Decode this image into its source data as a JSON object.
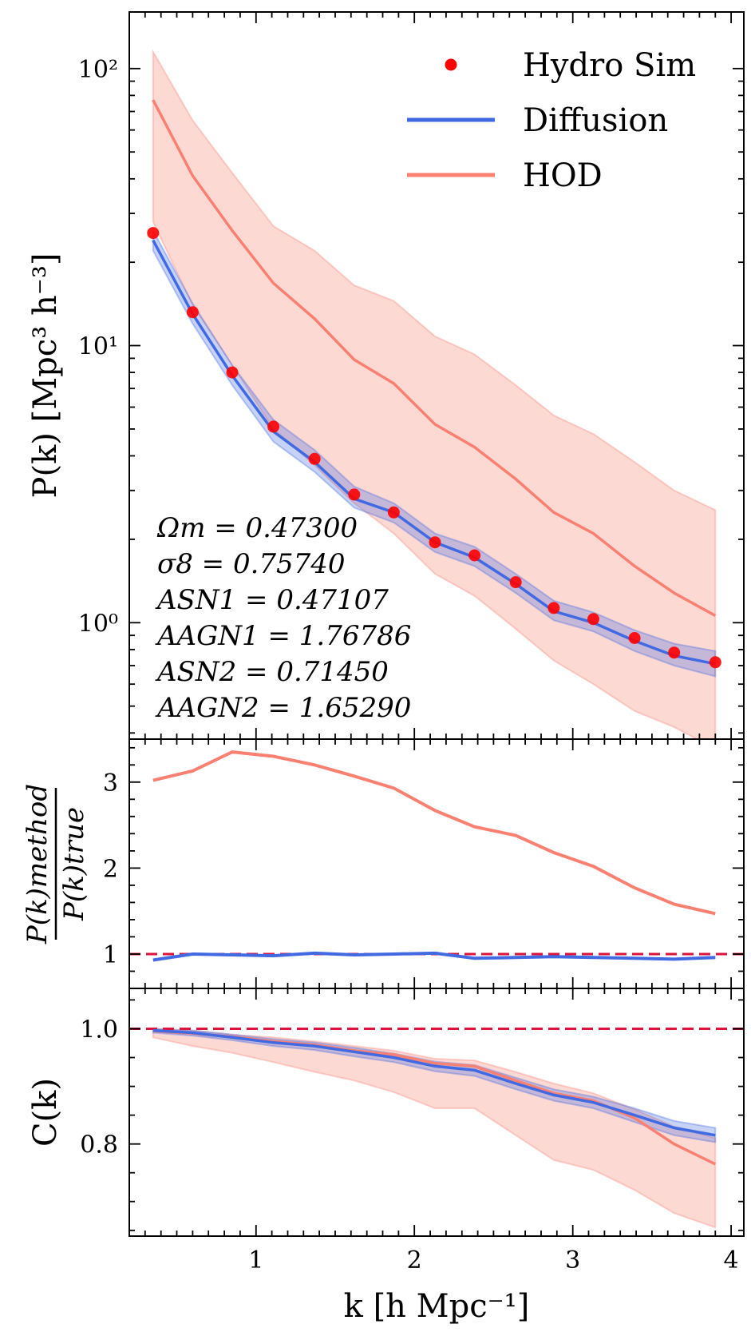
{
  "figure": {
    "xlabel": "k [h Mpc⁻¹]",
    "legend": [
      {
        "label": "Hydro Sim",
        "color": "#ff0000",
        "kind": "marker"
      },
      {
        "label": "Diffusion",
        "color": "#4169e1",
        "kind": "line"
      },
      {
        "label": "HOD",
        "color": "#fa8072",
        "kind": "line"
      }
    ],
    "annotations": [
      "Ωm = 0.47300",
      "σ8 = 0.75740",
      "ASN1 = 0.47107",
      "AAGN1 = 1.76786",
      "ASN2 = 0.71450",
      "AAGN2 = 1.65290"
    ]
  },
  "chart_data": [
    {
      "type": "line",
      "title": "",
      "ylabel": "P(k) [Mpc³ h⁻³]",
      "yscale": "log",
      "xlim": [
        0.2,
        4.08
      ],
      "ylim": [
        0.38,
        160
      ],
      "xticks": [
        1,
        2,
        3,
        4
      ],
      "yticks": [
        {
          "value": 1,
          "label": "10⁰"
        },
        {
          "value": 10,
          "label": "10¹"
        },
        {
          "value": 100,
          "label": "10²"
        }
      ],
      "x": [
        0.35,
        0.6,
        0.85,
        1.11,
        1.37,
        1.62,
        1.87,
        2.13,
        2.38,
        2.64,
        2.88,
        3.13,
        3.39,
        3.64,
        3.9
      ],
      "series": [
        {
          "name": "Hydro Sim",
          "style": "marker",
          "color": "#ff0000",
          "values": [
            25.5,
            13.2,
            8.0,
            5.1,
            3.9,
            2.9,
            2.5,
            1.95,
            1.75,
            1.4,
            1.13,
            1.03,
            0.88,
            0.78,
            0.72
          ]
        },
        {
          "name": "Diffusion",
          "style": "line",
          "color": "#4169e1",
          "values": [
            24.0,
            13.0,
            7.8,
            4.9,
            3.8,
            2.8,
            2.5,
            1.95,
            1.72,
            1.38,
            1.1,
            1.0,
            0.86,
            0.76,
            0.71
          ],
          "band_low": [
            22.0,
            12.0,
            7.2,
            4.5,
            3.5,
            2.6,
            2.3,
            1.8,
            1.6,
            1.28,
            1.02,
            0.93,
            0.79,
            0.7,
            0.64
          ],
          "band_high": [
            26.0,
            14.2,
            8.5,
            5.4,
            4.2,
            3.1,
            2.7,
            2.1,
            1.88,
            1.5,
            1.2,
            1.09,
            0.94,
            0.84,
            0.79
          ]
        },
        {
          "name": "HOD",
          "style": "line",
          "color": "#fa8072",
          "values": [
            77.0,
            41.0,
            26.0,
            16.8,
            12.5,
            8.9,
            7.3,
            5.2,
            4.3,
            3.3,
            2.5,
            2.1,
            1.6,
            1.28,
            1.06
          ],
          "band_low": [
            28.0,
            14.0,
            8.5,
            5.0,
            3.7,
            2.7,
            2.1,
            1.5,
            1.25,
            0.95,
            0.73,
            0.6,
            0.48,
            0.42,
            0.35
          ],
          "band_high": [
            115.0,
            65.0,
            42.0,
            27.0,
            22.0,
            16.5,
            14.5,
            10.8,
            9.3,
            7.2,
            5.6,
            4.8,
            3.8,
            3.0,
            2.55
          ]
        }
      ]
    },
    {
      "type": "line",
      "title": "",
      "ylabel": "P(k)_method / P(k)_true",
      "ylabel_num": "P(k)method",
      "ylabel_den": "P(k)true",
      "xlim": [
        0.2,
        4.08
      ],
      "ylim": [
        0.6,
        3.5
      ],
      "yticks": [
        1,
        2,
        3
      ],
      "reference_line": {
        "value": 1.0,
        "color": "#dc143c",
        "style": "dashed"
      },
      "x": [
        0.35,
        0.6,
        0.85,
        1.11,
        1.37,
        1.62,
        1.87,
        2.13,
        2.38,
        2.64,
        2.88,
        3.13,
        3.39,
        3.64,
        3.9
      ],
      "series": [
        {
          "name": "HOD",
          "color": "#fa8072",
          "values": [
            3.02,
            3.13,
            3.35,
            3.3,
            3.2,
            3.07,
            2.93,
            2.67,
            2.48,
            2.38,
            2.18,
            2.02,
            1.77,
            1.58,
            1.47
          ]
        },
        {
          "name": "Diffusion",
          "color": "#4169e1",
          "values": [
            0.93,
            1.0,
            0.99,
            0.98,
            1.01,
            0.99,
            1.0,
            1.01,
            0.95,
            0.96,
            0.97,
            0.96,
            0.95,
            0.94,
            0.96
          ]
        }
      ]
    },
    {
      "type": "area",
      "title": "",
      "ylabel": "C(k)",
      "xlim": [
        0.2,
        4.08
      ],
      "ylim": [
        0.64,
        1.07
      ],
      "yticks": [
        {
          "value": 0.8,
          "label": "0.8"
        },
        {
          "value": 1.0,
          "label": "1.0"
        }
      ],
      "reference_line": {
        "value": 1.0,
        "color": "#dc143c",
        "style": "dashed"
      },
      "x": [
        0.35,
        0.6,
        0.85,
        1.11,
        1.37,
        1.62,
        1.87,
        2.13,
        2.38,
        2.64,
        2.88,
        3.13,
        3.39,
        3.64,
        3.9
      ],
      "series": [
        {
          "name": "HOD",
          "color": "#fa8072",
          "values": [
            0.996,
            0.992,
            0.986,
            0.978,
            0.972,
            0.962,
            0.955,
            0.94,
            0.935,
            0.91,
            0.888,
            0.875,
            0.845,
            0.8,
            0.765
          ],
          "band_low": [
            0.985,
            0.97,
            0.958,
            0.942,
            0.925,
            0.91,
            0.89,
            0.862,
            0.862,
            0.815,
            0.772,
            0.755,
            0.72,
            0.68,
            0.655
          ],
          "band_high": [
            1.0,
            0.997,
            0.99,
            0.985,
            0.978,
            0.97,
            0.962,
            0.948,
            0.945,
            0.925,
            0.905,
            0.888,
            0.86,
            0.83,
            0.81
          ]
        },
        {
          "name": "Diffusion",
          "color": "#4169e1",
          "values": [
            0.997,
            0.993,
            0.985,
            0.976,
            0.97,
            0.96,
            0.95,
            0.935,
            0.928,
            0.905,
            0.885,
            0.872,
            0.85,
            0.828,
            0.815
          ],
          "band_low": [
            0.993,
            0.988,
            0.98,
            0.97,
            0.963,
            0.952,
            0.942,
            0.926,
            0.918,
            0.895,
            0.875,
            0.862,
            0.838,
            0.815,
            0.803
          ],
          "band_high": [
            1.0,
            0.997,
            0.99,
            0.982,
            0.976,
            0.967,
            0.957,
            0.943,
            0.937,
            0.915,
            0.895,
            0.882,
            0.862,
            0.84,
            0.828
          ]
        }
      ]
    }
  ]
}
